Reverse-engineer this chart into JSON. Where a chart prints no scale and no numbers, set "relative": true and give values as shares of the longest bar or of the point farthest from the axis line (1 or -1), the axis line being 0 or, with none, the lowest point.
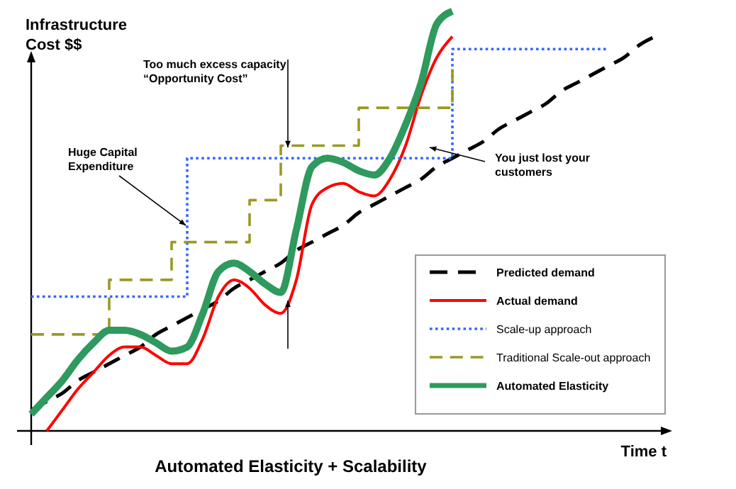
{
  "chart_data": {
    "type": "line",
    "relative": true,
    "title": "Automated Elasticity + Scalability",
    "xlabel": "Time t",
    "ylabel": "Infrastructure Cost $$",
    "legend": "bottom right",
    "categories": [
      null,
      null,
      null,
      null,
      null,
      null,
      null,
      null,
      null,
      null,
      null,
      null,
      null,
      null,
      null,
      null,
      null,
      null,
      null,
      null,
      null,
      null,
      null,
      null,
      null,
      null,
      null,
      null,
      null,
      null,
      null,
      null,
      null,
      null,
      null,
      null,
      null,
      null,
      null,
      null,
      null
    ],
    "series": [
      {
        "name": "Predicted demand",
        "color": "#000000",
        "line_style": "dashed",
        "values": [
          0.05,
          0.07,
          0.09,
          0.12,
          0.14,
          0.16,
          0.18,
          0.2,
          0.23,
          0.25,
          0.27,
          0.29,
          0.31,
          0.34,
          0.36,
          0.38,
          0.4,
          0.43,
          0.45,
          0.47,
          0.49,
          0.52,
          0.54,
          0.56,
          0.58,
          0.6,
          0.63,
          0.65,
          0.67,
          0.69,
          0.72,
          0.74,
          0.76,
          0.78,
          0.81,
          0.83,
          0.85,
          0.87,
          0.89,
          0.92,
          0.94
        ]
      },
      {
        "name": "Actual demand",
        "color": "#ff0000",
        "line_style": "solid",
        "values": [
          null,
          0.0,
          0.05,
          0.1,
          0.14,
          0.18,
          0.2,
          0.2,
          0.18,
          0.16,
          0.16,
          0.22,
          0.32,
          0.36,
          0.34,
          0.3,
          0.28,
          0.36,
          0.54,
          0.58,
          0.59,
          0.57,
          0.56,
          0.6,
          0.68,
          0.8,
          0.89,
          0.94,
          null,
          null,
          null,
          null,
          null,
          null,
          null,
          null,
          null,
          null,
          null,
          null,
          null
        ]
      },
      {
        "name": "Scale-up approach",
        "color": "#3366ff",
        "type": "step",
        "line_style": "dotted",
        "values": [
          0.32,
          0.32,
          0.32,
          0.32,
          0.32,
          0.32,
          0.32,
          0.32,
          0.32,
          0.32,
          0.65,
          0.65,
          0.65,
          0.65,
          0.65,
          0.65,
          0.65,
          0.65,
          0.65,
          0.65,
          0.65,
          0.65,
          0.65,
          0.65,
          0.65,
          0.65,
          0.65,
          0.91,
          0.91,
          0.91,
          0.91,
          0.91,
          0.91,
          0.91,
          0.91,
          0.91,
          0.91,
          0.91,
          null,
          null,
          null
        ]
      },
      {
        "name": "Traditional Scale-out approach",
        "color": "#999926",
        "type": "step",
        "line_style": "dashed",
        "values": [
          0.23,
          0.23,
          0.23,
          0.23,
          0.23,
          0.36,
          0.36,
          0.36,
          0.36,
          0.45,
          0.45,
          0.45,
          0.45,
          0.45,
          0.55,
          0.55,
          0.68,
          0.68,
          0.68,
          0.68,
          0.68,
          0.77,
          0.77,
          0.77,
          0.77,
          0.77,
          0.77,
          0.87,
          null,
          null,
          null,
          null,
          null,
          null,
          null,
          null,
          null,
          null,
          null,
          null,
          null
        ]
      },
      {
        "name": "Automated Elasticity",
        "color": "#2e9a5e",
        "line_style": "solid",
        "values": [
          0.04,
          0.08,
          0.12,
          0.17,
          0.21,
          0.24,
          0.24,
          0.23,
          0.21,
          0.19,
          0.2,
          0.28,
          0.38,
          0.4,
          0.38,
          0.35,
          0.33,
          0.48,
          0.63,
          0.65,
          0.64,
          0.62,
          0.61,
          0.65,
          0.73,
          0.83,
          0.97,
          1.0,
          null,
          null,
          null,
          null,
          null,
          null,
          null,
          null,
          null,
          null,
          null,
          null,
          null
        ]
      }
    ],
    "annotations": [
      "Too much excess capacity\n“Opportunity Cost”",
      "Huge Capital\nExpenditure",
      "You just lost your\ncustomers"
    ]
  }
}
